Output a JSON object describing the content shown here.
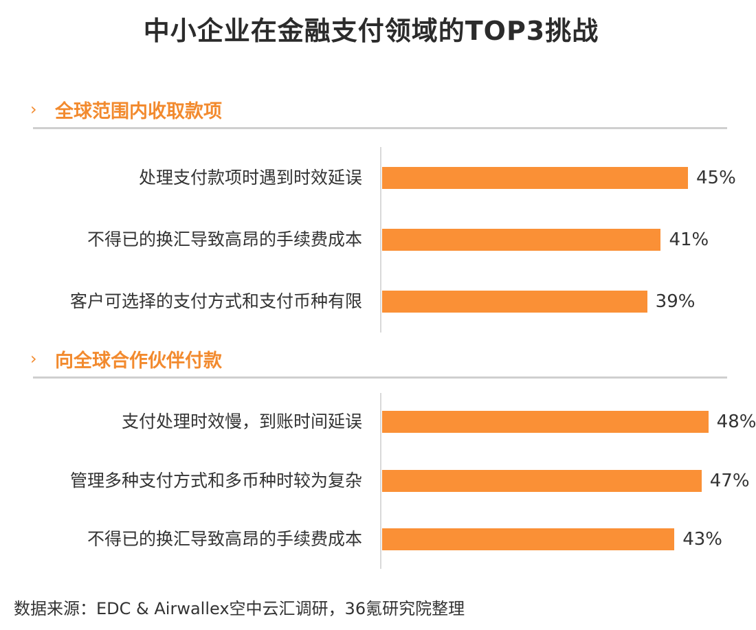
{
  "title": "中小企业在金融支付领域的TOP3挑战",
  "source": "数据来源：EDC & Airwallex空中云汇调研，36氪研究院整理",
  "colors": {
    "accent": "#f28a2e",
    "bar": "#fa9036",
    "rule": "#cfcfcf"
  },
  "chart_data": [
    {
      "type": "bar",
      "orientation": "horizontal",
      "title": "全球范围内收取款项",
      "categories": [
        "处理支付款项时遇到时效延误",
        "不得已的换汇导致高昂的手续费成本",
        "客户可选择的支付方式和支付币种有限"
      ],
      "values": [
        45,
        41,
        39
      ],
      "value_labels": [
        "45%",
        "41%",
        "39%"
      ],
      "unit": "%"
    },
    {
      "type": "bar",
      "orientation": "horizontal",
      "title": "向全球合作伙伴付款",
      "categories": [
        "支付处理时效慢，到账时间延误",
        "管理多种支付方式和多币种时较为复杂",
        "不得已的换汇导致高昂的手续费成本"
      ],
      "values": [
        48,
        47,
        43
      ],
      "value_labels": [
        "48%",
        "47%",
        "43%"
      ],
      "unit": "%"
    }
  ]
}
